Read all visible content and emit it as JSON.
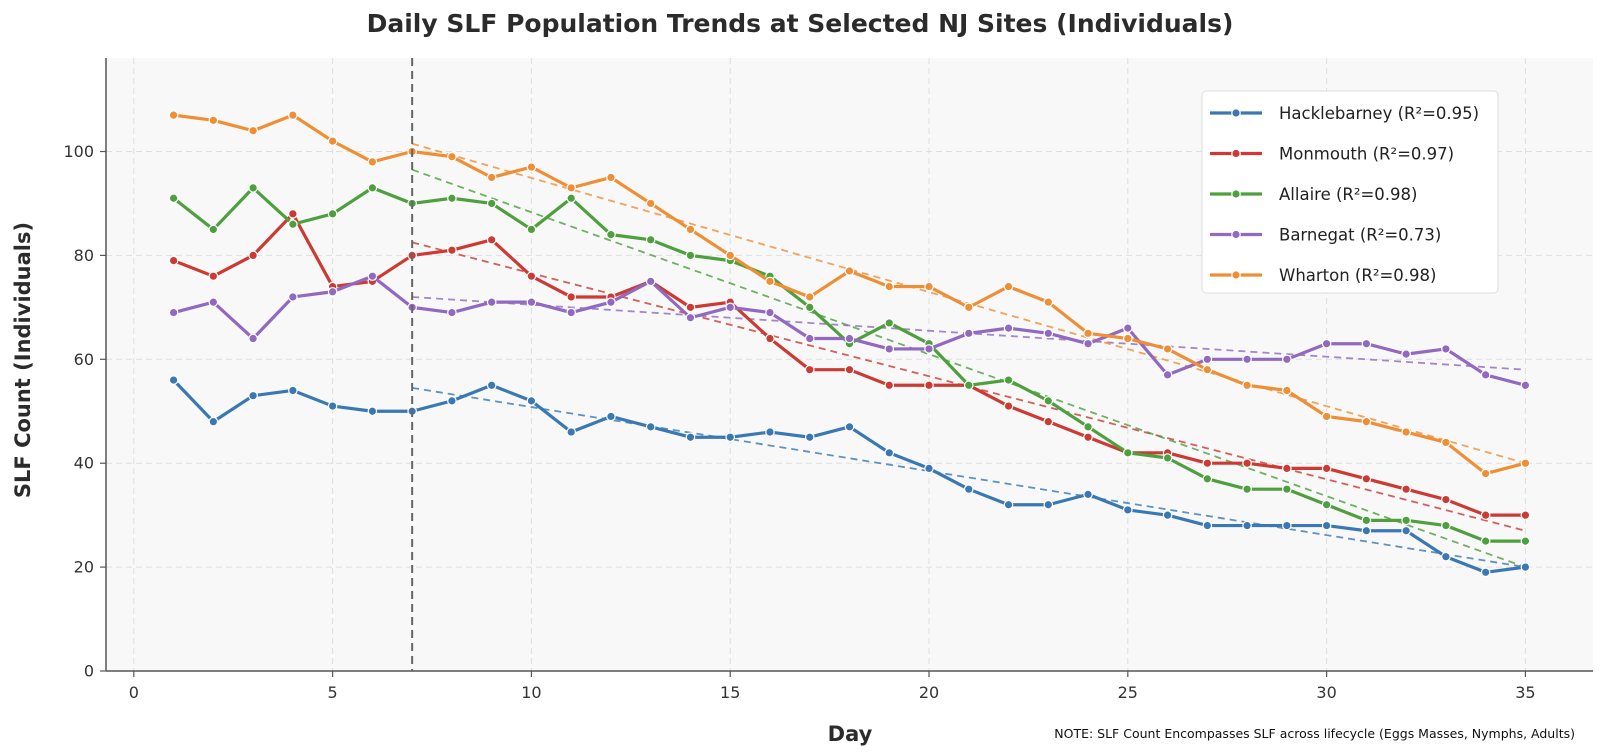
{
  "chart_data": {
    "type": "line",
    "title": "Daily SLF Population Trends at Selected NJ Sites (Individuals)",
    "xlabel": "Day",
    "ylabel": "SLF Count (Individuals)",
    "note": "NOTE: SLF Count Encompasses SLF across lifecycle (Eggs Masses, Nymphs, Adults)",
    "xlim": [
      -0.7,
      36.7
    ],
    "ylim": [
      0,
      118
    ],
    "xticks": [
      0,
      5,
      10,
      15,
      20,
      25,
      30,
      35
    ],
    "yticks": [
      0,
      20,
      40,
      60,
      80,
      100
    ],
    "grid": true,
    "legend_position": "upper-right",
    "vertical_marker_x": 7,
    "x": [
      1,
      2,
      3,
      4,
      5,
      6,
      7,
      8,
      9,
      10,
      11,
      12,
      13,
      14,
      15,
      16,
      17,
      18,
      19,
      20,
      21,
      22,
      23,
      24,
      25,
      26,
      27,
      28,
      29,
      30,
      31,
      32,
      33,
      34,
      35
    ],
    "series": [
      {
        "name": "Hacklebarney",
        "legend_label": "Hacklebarney (R²=0.95)",
        "r2": 0.95,
        "color": "#3a78b4",
        "values": [
          56,
          48,
          53,
          54,
          51,
          50,
          50,
          52,
          55,
          52,
          46,
          49,
          47,
          45,
          45,
          46,
          45,
          47,
          42,
          39,
          35,
          32,
          32,
          34,
          31,
          30,
          28,
          28,
          28,
          28,
          27,
          27,
          22,
          19,
          20
        ],
        "trend": {
          "x": [
            7,
            35
          ],
          "y": [
            54.5,
            20
          ]
        }
      },
      {
        "name": "Monmouth",
        "legend_label": "Monmouth (R²=0.97)",
        "r2": 0.97,
        "color": "#cc3a33",
        "values": [
          79,
          76,
          80,
          88,
          74,
          75,
          80,
          81,
          83,
          76,
          72,
          72,
          75,
          70,
          71,
          64,
          58,
          58,
          55,
          55,
          55,
          51,
          48,
          45,
          42,
          42,
          40,
          40,
          39,
          39,
          37,
          35,
          33,
          30,
          30
        ],
        "trend": {
          "x": [
            7,
            35
          ],
          "y": [
            82.5,
            27
          ]
        }
      },
      {
        "name": "Allaire",
        "legend_label": "Allaire (R²=0.98)",
        "r2": 0.98,
        "color": "#4e9f3e",
        "values": [
          91,
          85,
          93,
          86,
          88,
          93,
          90,
          91,
          90,
          85,
          91,
          84,
          83,
          80,
          79,
          76,
          70,
          63,
          67,
          63,
          55,
          56,
          52,
          47,
          42,
          41,
          37,
          35,
          35,
          32,
          29,
          29,
          28,
          25,
          25
        ],
        "trend": {
          "x": [
            7,
            35
          ],
          "y": [
            96.5,
            20
          ]
        }
      },
      {
        "name": "Barnegat",
        "legend_label": "Barnegat (R²=0.73)",
        "r2": 0.73,
        "color": "#9169c0",
        "values": [
          69,
          71,
          64,
          72,
          73,
          76,
          70,
          69,
          71,
          71,
          69,
          71,
          75,
          68,
          70,
          69,
          64,
          64,
          62,
          62,
          65,
          66,
          65,
          63,
          66,
          57,
          60,
          60,
          60,
          63,
          63,
          61,
          62,
          57,
          55
        ],
        "trend": {
          "x": [
            7,
            35
          ],
          "y": [
            72,
            58
          ]
        }
      },
      {
        "name": "Wharton",
        "legend_label": "Wharton (R²=0.98)",
        "r2": 0.98,
        "color": "#f08e35",
        "values": [
          107,
          106,
          104,
          107,
          102,
          98,
          100,
          99,
          95,
          97,
          93,
          95,
          90,
          85,
          80,
          75,
          72,
          77,
          74,
          74,
          70,
          74,
          71,
          65,
          64,
          62,
          58,
          55,
          54,
          49,
          48,
          46,
          44,
          38,
          40
        ],
        "trend": {
          "x": [
            7,
            35
          ],
          "y": [
            101.5,
            40
          ]
        }
      }
    ]
  }
}
